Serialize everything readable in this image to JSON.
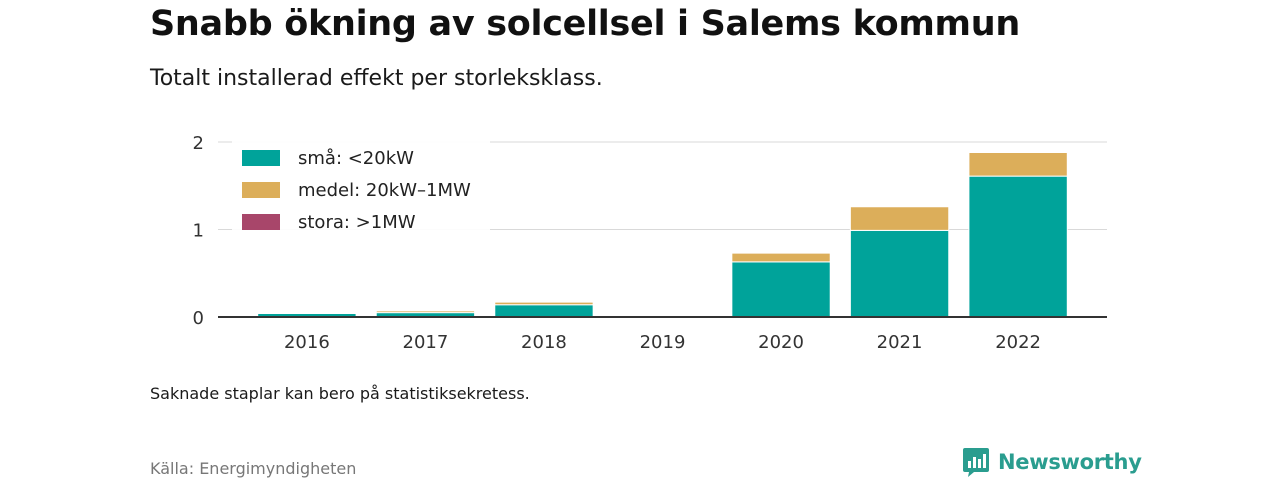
{
  "title": "Snabb ökning av solcellsel i Salems kommun",
  "subtitle": "Totalt installerad effekt per storleksklass.",
  "note": "Saknade staplar kan bero på statistiksekretess.",
  "source": "Källa: Energimyndigheten",
  "brand": {
    "name": "Newsworthy",
    "icon": "newsworthy-chart-logo-icon",
    "color": "#2a9d8f"
  },
  "chart_data": {
    "type": "bar",
    "stacked": true,
    "categories": [
      "2016",
      "2017",
      "2018",
      "2019",
      "2020",
      "2021",
      "2022"
    ],
    "series": [
      {
        "name": "små: <20kW",
        "color": "#00a39a",
        "values": [
          0.04,
          0.05,
          0.14,
          null,
          0.63,
          0.99,
          1.61
        ]
      },
      {
        "name": "medel: 20kW–1MW",
        "color": "#dcae5a",
        "values": [
          0.0,
          0.02,
          0.03,
          null,
          0.1,
          0.27,
          0.27
        ]
      },
      {
        "name": "stora: >1MW",
        "color": "#a8466a",
        "values": [
          0,
          0,
          0,
          null,
          0,
          0,
          0
        ]
      }
    ],
    "yticks": [
      0,
      1,
      2
    ],
    "ylim": [
      0,
      2.1
    ],
    "xlabel": "",
    "ylabel": "",
    "grid": true,
    "legend_position": "top-left"
  }
}
